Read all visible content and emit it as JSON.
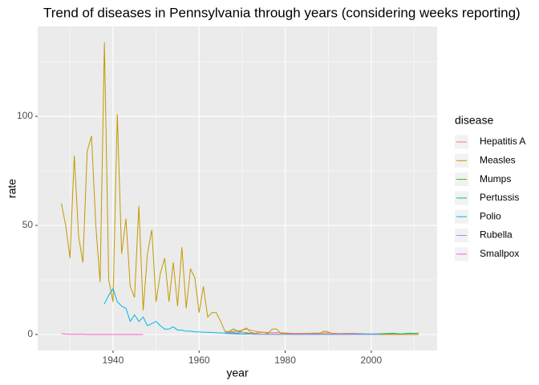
{
  "chart_data": {
    "type": "line",
    "title": "Trend of diseases in Pennsylvania through years (considering weeks reporting)",
    "x_label": "year",
    "y_label": "rate",
    "legend_title": "disease",
    "xlim": [
      1922.5,
      2015.3
    ],
    "ylim": [
      -7.35,
      141.2
    ],
    "xticks": [
      1940,
      1960,
      1980,
      2000
    ],
    "yticks": [
      0,
      50,
      100
    ],
    "grid": true,
    "legend_position": "right",
    "series": [
      {
        "name": "Hepatitis A",
        "color": "#F8766D",
        "x": [
          1966,
          1967,
          1968,
          1969,
          1970,
          1971,
          1972,
          1973,
          1974,
          1975,
          1976,
          1977,
          1978,
          1979,
          1980,
          1981,
          1982,
          1983,
          1984,
          1985,
          1986,
          1987,
          1988,
          1989,
          1990,
          1991,
          1992,
          1993,
          1994,
          1995,
          1996,
          1997,
          1998,
          1999,
          2000,
          2001,
          2002,
          2003,
          2004,
          2005,
          2006,
          2007,
          2008,
          2009,
          2010,
          2011
        ],
        "values": [
          1.5,
          1.2,
          1.4,
          1.6,
          2.0,
          2.5,
          2.0,
          1.5,
          1.2,
          1.0,
          0.9,
          0.8,
          0.9,
          0.8,
          0.7,
          0.6,
          0.5,
          0.5,
          0.5,
          0.6,
          0.6,
          0.7,
          0.6,
          0.7,
          0.8,
          0.6,
          0.5,
          0.4,
          0.5,
          0.5,
          0.5,
          0.4,
          0.3,
          0.3,
          0.3,
          0.2,
          0.3,
          0.3,
          0.2,
          0.2,
          0.2,
          0.1,
          0.1,
          0.1,
          0.1,
          0.1
        ]
      },
      {
        "name": "Measles",
        "color": "#C49A00",
        "x": [
          1928,
          1929,
          1930,
          1931,
          1932,
          1933,
          1934,
          1935,
          1936,
          1937,
          1938,
          1939,
          1940,
          1941,
          1942,
          1943,
          1944,
          1945,
          1946,
          1947,
          1948,
          1949,
          1950,
          1951,
          1952,
          1953,
          1954,
          1955,
          1956,
          1957,
          1958,
          1959,
          1960,
          1961,
          1962,
          1963,
          1964,
          1965,
          1966,
          1967,
          1968,
          1969,
          1970,
          1971,
          1972,
          1973,
          1974,
          1975,
          1976,
          1977,
          1978,
          1979,
          1980,
          1981,
          1982,
          1983,
          1984,
          1985,
          1986,
          1987,
          1988,
          1989,
          1990,
          1991,
          1992,
          1993,
          1994,
          1995,
          1996,
          1997,
          1998,
          1999,
          2000,
          2001,
          2002,
          2003,
          2004,
          2005,
          2006,
          2007,
          2008,
          2009,
          2010,
          2011
        ],
        "values": [
          60,
          50,
          35,
          82,
          45,
          33,
          84,
          91,
          50,
          24,
          134,
          25,
          15,
          101,
          37,
          53,
          22,
          17,
          59,
          11,
          37,
          48,
          15,
          28,
          35,
          15,
          33,
          13,
          40,
          12,
          30,
          26,
          10,
          22,
          8,
          10,
          10,
          6,
          1.5,
          1,
          1,
          0.5,
          2,
          3,
          1,
          0.5,
          1,
          1,
          0.5,
          2.5,
          2.5,
          0.5,
          0.5,
          0.3,
          0.2,
          0.2,
          0.1,
          0.1,
          0.2,
          0.3,
          0.5,
          1.5,
          1.2,
          0.3,
          0.1,
          0.1,
          0.2,
          0.1,
          0.1,
          0.1,
          0,
          0,
          0,
          0,
          0,
          0,
          0,
          0,
          0,
          0,
          0,
          0,
          0,
          0
        ]
      },
      {
        "name": "Mumps",
        "color": "#53B400",
        "x": [
          1967,
          1968,
          1969,
          1970,
          1971,
          1972,
          1973,
          1974,
          1975,
          1976,
          1977,
          1978,
          1979,
          1980,
          1981,
          1982,
          1983,
          1984,
          1985,
          1986,
          1987,
          1988,
          1989,
          1990,
          1991,
          1992,
          1993,
          1994,
          1995,
          1996,
          1997,
          1998,
          1999,
          2000,
          2001,
          2002
        ],
        "values": [
          1.5,
          2.5,
          1.5,
          1.0,
          0.8,
          0.5,
          0.3,
          0.3,
          0.2,
          0.2,
          0.2,
          0.1,
          0.1,
          0.1,
          0.1,
          0.1,
          0.1,
          0.1,
          0.1,
          0.3,
          0.2,
          0.1,
          0.1,
          0.1,
          0.1,
          0.1,
          0.1,
          0.1,
          0,
          0,
          0,
          0,
          0,
          0,
          0,
          0
        ]
      },
      {
        "name": "Pertussis",
        "color": "#00C094",
        "x": [
          1966,
          1967,
          1968,
          1969,
          1970,
          1971,
          1972,
          1973,
          1974,
          1975,
          1976,
          1977,
          1978,
          1979,
          1980,
          1981,
          1982,
          1983,
          1984,
          1985,
          1986,
          1987,
          1988,
          1989,
          1990,
          1991,
          1992,
          1993,
          1994,
          1995,
          1996,
          1997,
          1998,
          1999,
          2000,
          2001,
          2002,
          2003,
          2004,
          2005,
          2006,
          2007,
          2008,
          2009,
          2010,
          2011
        ],
        "values": [
          0.5,
          0.4,
          0.3,
          0.3,
          0.2,
          0.2,
          0.2,
          0.1,
          0.1,
          0.1,
          0.1,
          0.1,
          0.1,
          0.1,
          0.1,
          0.1,
          0.1,
          0.1,
          0.1,
          0.1,
          0.2,
          0.2,
          0.1,
          0.1,
          0.2,
          0.1,
          0.1,
          0.1,
          0.2,
          0.2,
          0.2,
          0.3,
          0.3,
          0.2,
          0.2,
          0.3,
          0.3,
          0.4,
          0.5,
          0.6,
          0.4,
          0.3,
          0.5,
          0.6,
          0.5,
          0.7
        ]
      },
      {
        "name": "Polio",
        "color": "#00B6EB",
        "x": [
          1938,
          1939,
          1940,
          1941,
          1942,
          1943,
          1944,
          1945,
          1946,
          1947,
          1948,
          1949,
          1950,
          1951,
          1952,
          1953,
          1954,
          1955,
          1956,
          1957,
          1958,
          1959,
          1960,
          1961,
          1962,
          1963,
          1964,
          1965,
          1966,
          1967,
          1968,
          1969,
          1970
        ],
        "values": [
          14,
          18,
          21,
          15,
          13,
          12,
          6,
          9,
          6,
          8,
          4,
          5,
          6,
          4,
          2.5,
          2.5,
          3.5,
          2,
          2,
          1.5,
          1.5,
          1.2,
          1.2,
          1,
          1,
          0.9,
          0.8,
          0.7,
          0.6,
          0.5,
          0.4,
          0.3,
          0.2
        ]
      },
      {
        "name": "Rubella",
        "color": "#A58AFF",
        "x": [
          1966,
          1967,
          1968,
          1969,
          1970,
          1971,
          1972,
          1973,
          1974,
          1975,
          1976,
          1977,
          1978,
          1979,
          1980,
          1981,
          1982,
          1983,
          1984,
          1985,
          1986,
          1987,
          1988,
          1989,
          1990,
          1991,
          1992,
          1993,
          1994,
          1995,
          1996,
          1997,
          1998,
          1999,
          2000,
          2001,
          2002
        ],
        "values": [
          1.0,
          0.8,
          0.6,
          0.8,
          1.0,
          0.5,
          0.3,
          0.2,
          0.2,
          0.2,
          0.1,
          0.2,
          0.1,
          0.1,
          0.1,
          0,
          0,
          0,
          0,
          0,
          0,
          0,
          0,
          0,
          0,
          0,
          0,
          0,
          0,
          0,
          0,
          0,
          0,
          0,
          0,
          0,
          0
        ]
      },
      {
        "name": "Smallpox",
        "color": "#FB61D7",
        "x": [
          1928,
          1929,
          1930,
          1931,
          1932,
          1933,
          1934,
          1935,
          1936,
          1937,
          1938,
          1939,
          1940,
          1941,
          1942,
          1943,
          1944,
          1945,
          1946,
          1947
        ],
        "values": [
          0.4,
          0.2,
          0.1,
          0.1,
          0.1,
          0.1,
          0,
          0,
          0,
          0,
          0,
          0,
          0,
          0,
          0,
          0,
          0,
          0,
          0,
          0
        ]
      }
    ]
  }
}
